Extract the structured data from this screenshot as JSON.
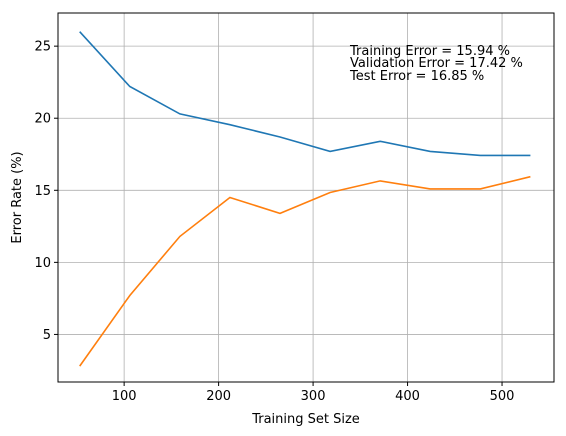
{
  "chart_data": {
    "type": "line",
    "xlabel": "Training Set Size",
    "ylabel": "Error Rate (%)",
    "xlim": [
      30,
      555
    ],
    "ylim": [
      1.7,
      27.3
    ],
    "xticks": [
      100,
      200,
      300,
      400,
      500
    ],
    "yticks": [
      5,
      10,
      15,
      20,
      25
    ],
    "grid": true,
    "annotations": [
      "Training Error = 15.94 %",
      "Validation Error = 17.42 %",
      "Test Error = 16.85 %"
    ],
    "series": [
      {
        "color": "#1f77b4",
        "x": [
          53,
          106,
          159,
          212,
          265,
          318,
          371,
          424,
          477,
          530
        ],
        "y": [
          26.0,
          22.2,
          20.3,
          19.55,
          18.7,
          17.7,
          18.4,
          17.7,
          17.42,
          17.42
        ]
      },
      {
        "color": "#ff7f0e",
        "x": [
          53,
          106,
          159,
          212,
          265,
          318,
          371,
          424,
          477,
          530
        ],
        "y": [
          2.8,
          7.7,
          11.8,
          14.5,
          13.4,
          14.85,
          15.65,
          15.1,
          15.1,
          15.94
        ]
      }
    ]
  }
}
